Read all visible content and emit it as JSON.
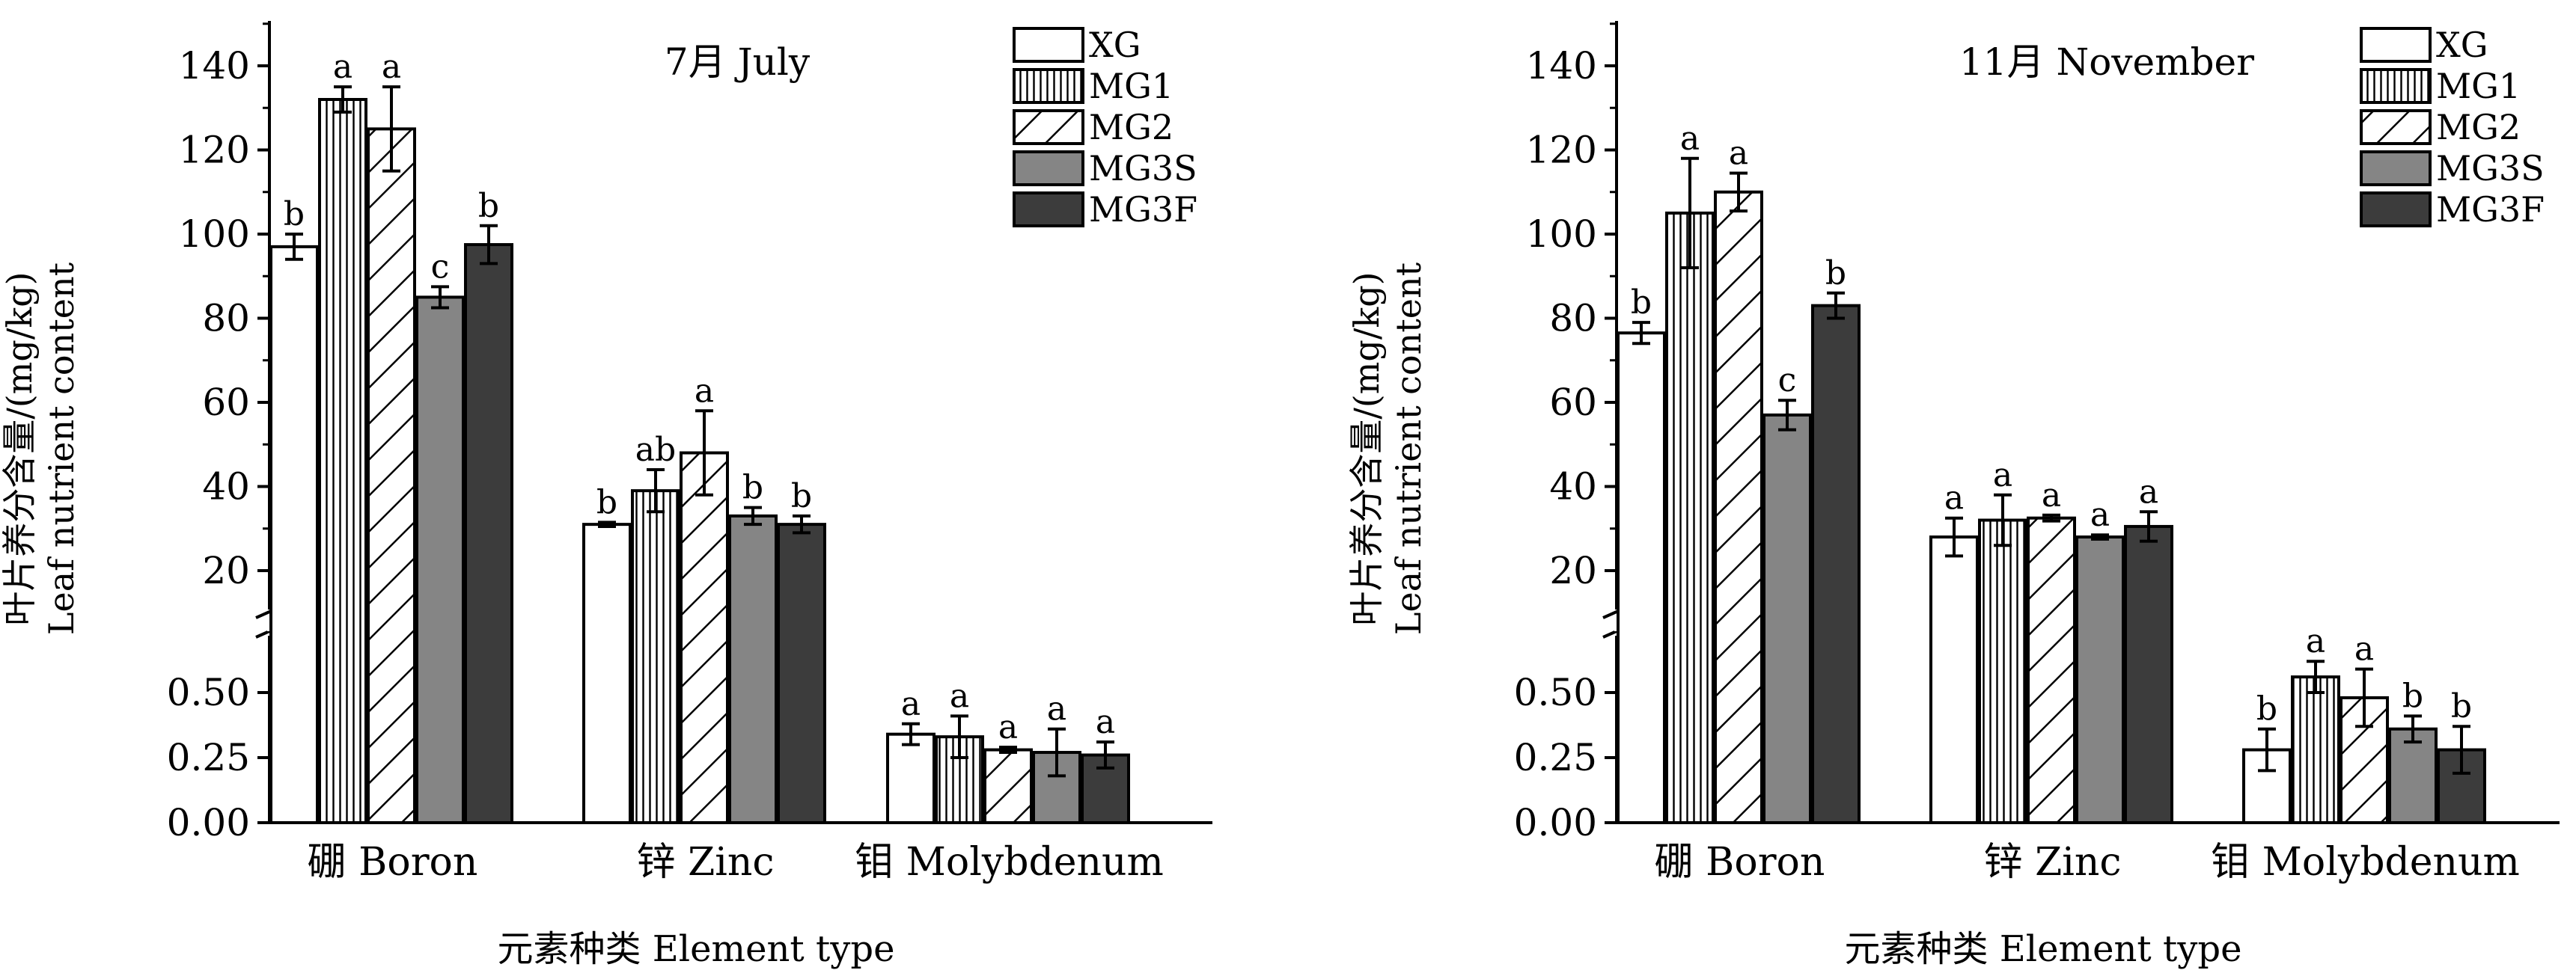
{
  "legend": [
    "XG",
    "MG1",
    "MG2",
    "MG3S",
    "MG3F"
  ],
  "styles": {
    "XG": {
      "fill": "#ffffff",
      "pattern": "none"
    },
    "MG1": {
      "fill": "#ffffff",
      "pattern": "vertical-lines"
    },
    "MG2": {
      "fill": "#ffffff",
      "pattern": "diagonal-lines"
    },
    "MG3S": {
      "fill": "#858585",
      "pattern": "none"
    },
    "MG3F": {
      "fill": "#3c3c3c",
      "pattern": "none"
    }
  },
  "ylabel_cn": "叶片养分含量/(mg/kg)",
  "ylabel_en": "Leaf nutrient content",
  "xlabel": "元素种类 Element type",
  "chart_data": [
    {
      "type": "bar",
      "title": "7月 July",
      "categories": [
        "硼 Boron",
        "锌 Zinc",
        "钼 Molybdenum"
      ],
      "axis_break": true,
      "upper_axis": {
        "range": [
          10,
          150
        ],
        "ticks": [
          20,
          40,
          60,
          80,
          100,
          120,
          140
        ]
      },
      "lower_axis": {
        "range": [
          0,
          0.7
        ],
        "ticks": [
          0.0,
          0.25,
          0.5
        ],
        "tick_labels": [
          "0.00",
          "0.25",
          "0.50"
        ]
      },
      "series": [
        {
          "name": "XG",
          "values": [
            97,
            31,
            0.34
          ],
          "errors": [
            3,
            0.5,
            0.04
          ],
          "letters": [
            "b",
            "b",
            "a"
          ]
        },
        {
          "name": "MG1",
          "values": [
            132,
            39,
            0.33
          ],
          "errors": [
            3,
            5,
            0.08
          ],
          "letters": [
            "a",
            "ab",
            "a"
          ]
        },
        {
          "name": "MG2",
          "values": [
            125,
            48,
            0.28
          ],
          "errors": [
            10,
            10,
            0.01
          ],
          "letters": [
            "a",
            "a",
            "a"
          ]
        },
        {
          "name": "MG3S",
          "values": [
            85,
            33,
            0.27
          ],
          "errors": [
            2.5,
            2,
            0.09
          ],
          "letters": [
            "c",
            "b",
            "a"
          ]
        },
        {
          "name": "MG3F",
          "values": [
            97.5,
            31,
            0.26
          ],
          "errors": [
            4.5,
            2,
            0.05
          ],
          "letters": [
            "b",
            "b",
            "a"
          ]
        }
      ]
    },
    {
      "type": "bar",
      "title": "11月 November",
      "categories": [
        "硼 Boron",
        "锌 Zinc",
        "钼 Molybdenum"
      ],
      "axis_break": true,
      "upper_axis": {
        "range": [
          10,
          150
        ],
        "ticks": [
          20,
          40,
          60,
          80,
          100,
          120,
          140
        ]
      },
      "lower_axis": {
        "range": [
          0,
          0.7
        ],
        "ticks": [
          0.0,
          0.25,
          0.5
        ],
        "tick_labels": [
          "0.00",
          "0.25",
          "0.50"
        ]
      },
      "series": [
        {
          "name": "XG",
          "values": [
            76.5,
            28,
            0.28
          ],
          "errors": [
            2.5,
            4.5,
            0.08
          ],
          "letters": [
            "b",
            "a",
            "b"
          ]
        },
        {
          "name": "MG1",
          "values": [
            105,
            32,
            0.56
          ],
          "errors": [
            13,
            6,
            0.06
          ],
          "letters": [
            "a",
            "a",
            "a"
          ]
        },
        {
          "name": "MG2",
          "values": [
            110,
            32.5,
            0.48
          ],
          "errors": [
            4.5,
            0.7,
            0.11
          ],
          "letters": [
            "a",
            "a",
            "a"
          ]
        },
        {
          "name": "MG3S",
          "values": [
            57,
            28,
            0.36
          ],
          "errors": [
            3.5,
            0.5,
            0.05
          ],
          "letters": [
            "c",
            "a",
            "b"
          ]
        },
        {
          "name": "MG3F",
          "values": [
            83,
            30.5,
            0.28
          ],
          "errors": [
            3,
            3.5,
            0.09
          ],
          "letters": [
            "b",
            "a",
            "b"
          ]
        }
      ]
    }
  ]
}
